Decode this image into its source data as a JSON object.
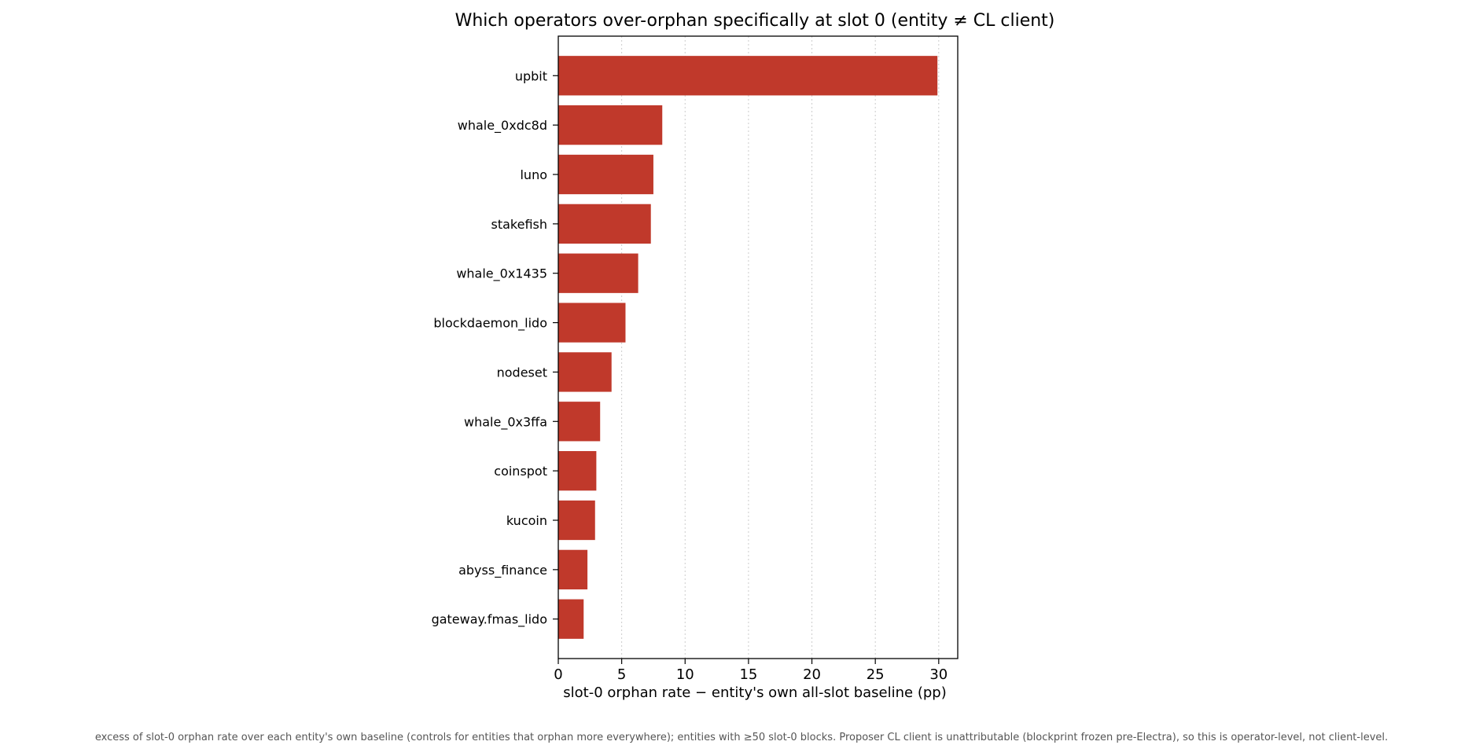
{
  "chart_data": {
    "type": "bar",
    "orientation": "horizontal",
    "title": "Which operators over-orphan specifically at slot 0  (entity ≠ CL client)",
    "xlabel": "slot-0 orphan rate − entity's own all-slot baseline  (pp)",
    "ylabel": "",
    "categories": [
      "upbit",
      "whale_0xdc8d",
      "luno",
      "stakefish",
      "whale_0x1435",
      "blockdaemon_lido",
      "nodeset",
      "whale_0x3ffa",
      "coinspot",
      "kucoin",
      "abyss_finance",
      "gateway.fmas_lido"
    ],
    "values": [
      29.9,
      8.2,
      7.5,
      7.3,
      6.3,
      5.3,
      4.2,
      3.3,
      3.0,
      2.9,
      2.3,
      2.0
    ],
    "xlim": [
      0,
      31.5
    ],
    "xticks": [
      0,
      5,
      10,
      15,
      20,
      25,
      30
    ],
    "grid": "x-dotted",
    "bar_color": "#c0392b",
    "footnote": "excess of slot-0 orphan rate over each entity's own baseline (controls for entities that orphan more everywhere); entities with ≥50 slot-0 blocks. Proposer CL client is unattributable (blockprint frozen pre-Electra), so this is operator-level, not client-level."
  }
}
